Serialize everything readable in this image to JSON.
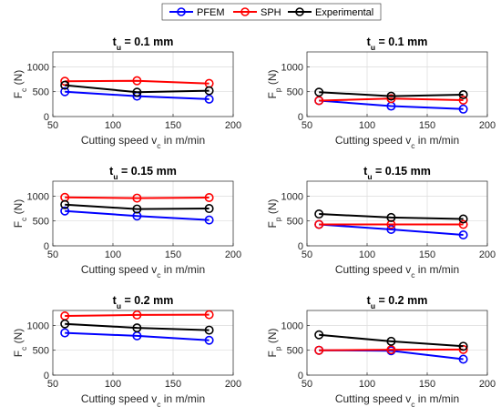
{
  "legend": {
    "position": "top-center",
    "entries": [
      {
        "name": "PFEM",
        "color": "#0000ff"
      },
      {
        "name": "SPH",
        "color": "#ff0000"
      },
      {
        "name": "Experimental",
        "color": "#000000"
      }
    ]
  },
  "chart_data": [
    {
      "type": "line",
      "title": "t_u = 0.1 mm",
      "title_parts": {
        "main": "t",
        "sub": "u",
        "rest": " = 0.1 mm"
      },
      "xlabel": "Cutting speed v_c in m/min",
      "xlabel_parts": {
        "main": "Cutting speed v",
        "sub": "c",
        "rest": " in m/min"
      },
      "ylabel": "F_c (N)",
      "ylabel_parts": {
        "main": "F",
        "sub": "c",
        "rest": " (N)"
      },
      "xlim": [
        50,
        200
      ],
      "ylim": [
        0,
        1300
      ],
      "xticks": [
        50,
        100,
        150,
        200
      ],
      "yticks": [
        0,
        500,
        1000
      ],
      "grid": true,
      "x": [
        60,
        120,
        180
      ],
      "series": [
        {
          "name": "PFEM",
          "values": [
            500,
            410,
            350
          ]
        },
        {
          "name": "SPH",
          "values": [
            710,
            720,
            665
          ]
        },
        {
          "name": "Experimental",
          "values": [
            630,
            490,
            520
          ]
        }
      ]
    },
    {
      "type": "line",
      "title": "t_u = 0.1 mm",
      "title_parts": {
        "main": "t",
        "sub": "u",
        "rest": " = 0.1 mm"
      },
      "xlabel": "Cutting speed v_c in m/min",
      "xlabel_parts": {
        "main": "Cutting speed v",
        "sub": "c",
        "rest": " in m/min"
      },
      "ylabel": "F_p (N)",
      "ylabel_parts": {
        "main": "F",
        "sub": "p",
        "rest": " (N)"
      },
      "xlim": [
        50,
        200
      ],
      "ylim": [
        0,
        1300
      ],
      "xticks": [
        50,
        100,
        150,
        200
      ],
      "yticks": [
        0,
        500,
        1000
      ],
      "grid": true,
      "x": [
        60,
        120,
        180
      ],
      "series": [
        {
          "name": "PFEM",
          "values": [
            320,
            210,
            150
          ]
        },
        {
          "name": "SPH",
          "values": [
            320,
            360,
            330
          ]
        },
        {
          "name": "Experimental",
          "values": [
            490,
            410,
            440
          ]
        }
      ]
    },
    {
      "type": "line",
      "title": "t_u = 0.15 mm",
      "title_parts": {
        "main": "t",
        "sub": "u",
        "rest": " = 0.15 mm"
      },
      "xlabel": "Cutting speed v_c in m/min",
      "xlabel_parts": {
        "main": "Cutting speed v",
        "sub": "c",
        "rest": " in m/min"
      },
      "ylabel": "F_c (N)",
      "ylabel_parts": {
        "main": "F",
        "sub": "c",
        "rest": " (N)"
      },
      "xlim": [
        50,
        200
      ],
      "ylim": [
        0,
        1300
      ],
      "xticks": [
        50,
        100,
        150,
        200
      ],
      "yticks": [
        0,
        500,
        1000
      ],
      "grid": true,
      "x": [
        60,
        120,
        180
      ],
      "series": [
        {
          "name": "PFEM",
          "values": [
            700,
            600,
            520
          ]
        },
        {
          "name": "SPH",
          "values": [
            975,
            960,
            970
          ]
        },
        {
          "name": "Experimental",
          "values": [
            830,
            740,
            750
          ]
        }
      ]
    },
    {
      "type": "line",
      "title": "t_u = 0.15 mm",
      "title_parts": {
        "main": "t",
        "sub": "u",
        "rest": " = 0.15 mm"
      },
      "xlabel": "Cutting speed v_c in m/min",
      "xlabel_parts": {
        "main": "Cutting speed v",
        "sub": "c",
        "rest": " in m/min"
      },
      "ylabel": "F_p (N)",
      "ylabel_parts": {
        "main": "F",
        "sub": "p",
        "rest": " (N)"
      },
      "xlim": [
        50,
        200
      ],
      "ylim": [
        0,
        1300
      ],
      "xticks": [
        50,
        100,
        150,
        200
      ],
      "yticks": [
        0,
        500,
        1000
      ],
      "grid": true,
      "x": [
        60,
        120,
        180
      ],
      "series": [
        {
          "name": "PFEM",
          "values": [
            430,
            330,
            220
          ]
        },
        {
          "name": "SPH",
          "values": [
            430,
            430,
            430
          ]
        },
        {
          "name": "Experimental",
          "values": [
            640,
            570,
            540
          ]
        }
      ]
    },
    {
      "type": "line",
      "title": "t_u = 0.2 mm",
      "title_parts": {
        "main": "t",
        "sub": "u",
        "rest": " = 0.2 mm"
      },
      "xlabel": "Cutting speed v_c in m/min",
      "xlabel_parts": {
        "main": "Cutting speed v",
        "sub": "c",
        "rest": " in m/min"
      },
      "ylabel": "F_c (N)",
      "ylabel_parts": {
        "main": "F",
        "sub": "c",
        "rest": " (N)"
      },
      "xlim": [
        50,
        200
      ],
      "ylim": [
        0,
        1300
      ],
      "xticks": [
        50,
        100,
        150,
        200
      ],
      "yticks": [
        0,
        500,
        1000
      ],
      "grid": true,
      "x": [
        60,
        120,
        180
      ],
      "series": [
        {
          "name": "PFEM",
          "values": [
            850,
            790,
            700
          ]
        },
        {
          "name": "SPH",
          "values": [
            1190,
            1210,
            1215
          ]
        },
        {
          "name": "Experimental",
          "values": [
            1030,
            950,
            905
          ]
        }
      ]
    },
    {
      "type": "line",
      "title": "t_u = 0.2 mm",
      "title_parts": {
        "main": "t",
        "sub": "u",
        "rest": " = 0.2 mm"
      },
      "xlabel": "Cutting speed v_c in m/min",
      "xlabel_parts": {
        "main": "Cutting speed v",
        "sub": "c",
        "rest": " in m/min"
      },
      "ylabel": "F_p (N)",
      "ylabel_parts": {
        "main": "F",
        "sub": "p",
        "rest": " (N)"
      },
      "xlim": [
        50,
        200
      ],
      "ylim": [
        0,
        1300
      ],
      "xticks": [
        50,
        100,
        150,
        200
      ],
      "yticks": [
        0,
        500,
        1000
      ],
      "grid": true,
      "x": [
        60,
        120,
        180
      ],
      "series": [
        {
          "name": "PFEM",
          "values": [
            500,
            490,
            320
          ]
        },
        {
          "name": "SPH",
          "values": [
            500,
            510,
            515
          ]
        },
        {
          "name": "Experimental",
          "values": [
            810,
            680,
            580
          ]
        }
      ]
    }
  ]
}
